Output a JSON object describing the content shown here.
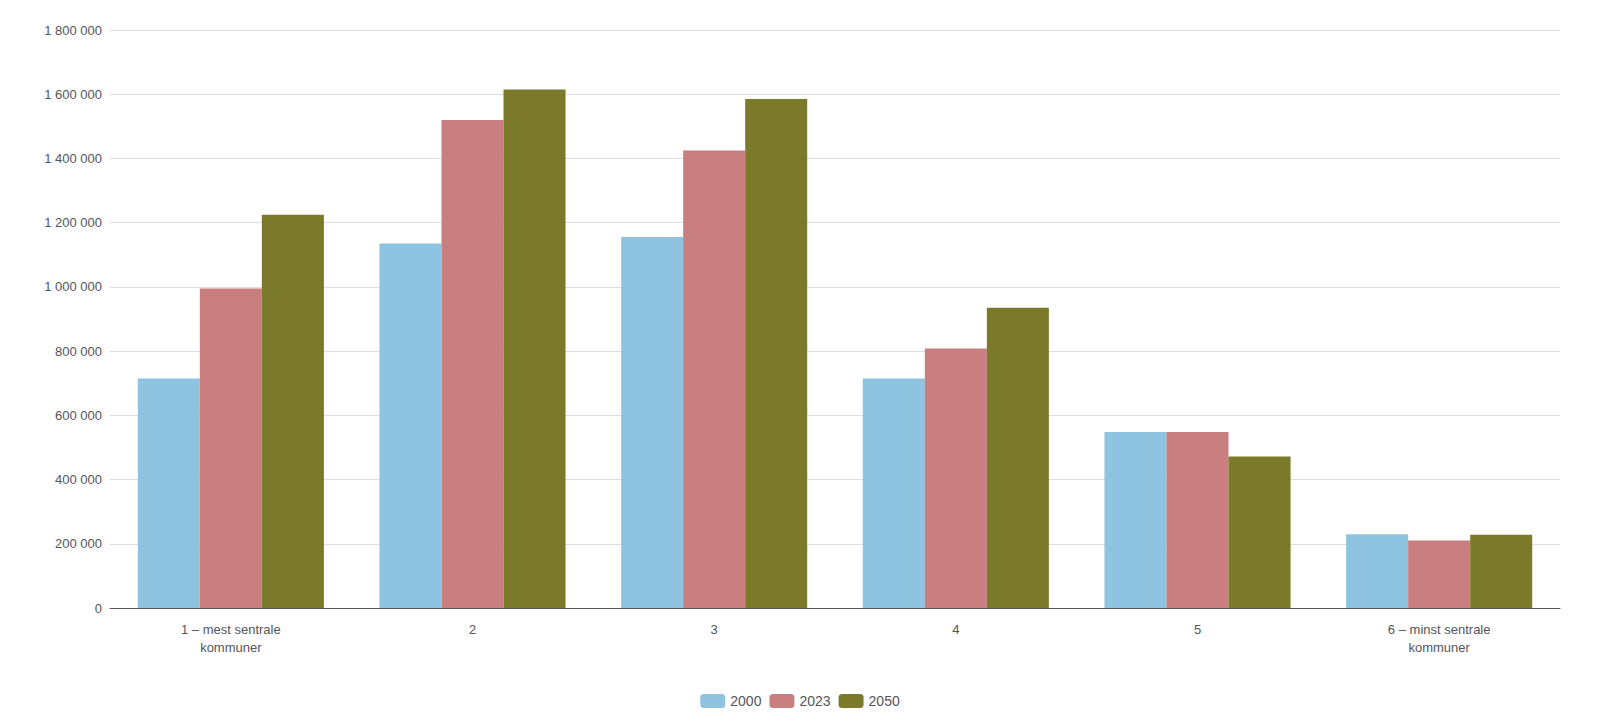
{
  "chart_data": {
    "type": "bar",
    "categories": [
      "1 – mest sentrale\nkommuner",
      "2",
      "3",
      "4",
      "5",
      "6 – minst sentrale\nkommuner"
    ],
    "series": [
      {
        "name": "2000",
        "color": "#8ec4e0",
        "values": [
          715000,
          1135000,
          1155000,
          715000,
          548000,
          230000
        ]
      },
      {
        "name": "2023",
        "color": "#c97f7f",
        "values": [
          995000,
          1520000,
          1425000,
          808000,
          548000,
          210000
        ]
      },
      {
        "name": "2050",
        "color": "#7a7a2a",
        "values": [
          1225000,
          1615000,
          1585000,
          935000,
          472000,
          228000
        ]
      }
    ],
    "ylim": [
      0,
      1800000
    ],
    "yticks": [
      0,
      {
        "value": 200000,
        "label": "200 000"
      },
      {
        "value": 400000,
        "label": "400 000"
      },
      {
        "value": 600000,
        "label": "600 000"
      },
      {
        "value": 800000,
        "label": "800 000"
      },
      {
        "value": 1000000,
        "label": "1 000 000"
      },
      {
        "value": 1200000,
        "label": "1 200 000"
      },
      {
        "value": 1400000,
        "label": "1 400 000"
      },
      {
        "value": 1600000,
        "label": "1 600 000"
      },
      {
        "value": 1800000,
        "label": "1 800 000"
      }
    ],
    "grid": true,
    "legend": "bottom"
  }
}
